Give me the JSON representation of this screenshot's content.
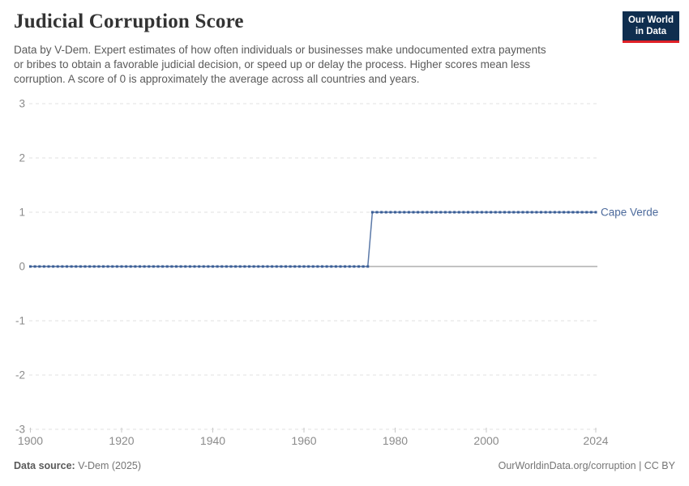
{
  "header": {
    "title": "Judicial Corruption Score",
    "subtitle_lines": [
      "Data by V-Dem. Expert estimates of how often individuals or businesses make undocumented extra payments",
      "or bribes to obtain a favorable judicial decision, or speed up or delay the process. Higher scores mean less",
      "corruption. A score of 0 is approximately the average across all countries and years."
    ],
    "logo": {
      "line1": "Our World",
      "line2": "in Data"
    }
  },
  "chart_data": {
    "type": "line",
    "title": "Judicial Corruption Score",
    "xlim": [
      1900,
      2024
    ],
    "ylim": [
      -3,
      3
    ],
    "x_label_ticks": [
      1900,
      1920,
      1940,
      1960,
      1980,
      2000,
      2024
    ],
    "y_ticks": [
      3,
      2,
      1,
      0,
      -1,
      -2,
      -3
    ],
    "grid": "horizontal-dashed",
    "legend_position": "end-of-line-label",
    "series": [
      {
        "name": "Cape Verde",
        "color": "#4c6a9c",
        "line_color": "#5b79a8",
        "marker_color": "#3a5e96",
        "marker": "square",
        "points_per_year": true,
        "segments": [
          {
            "from_year": 1900,
            "to_year": 1974,
            "value": 0
          },
          {
            "from_year": 1975,
            "to_year": 2024,
            "value": 1
          }
        ]
      }
    ]
  },
  "colors": {
    "gridline": "#e0e0e0",
    "zero_line": "#adadad",
    "tick_label": "#8b8b8b",
    "tick_mark": "#c8c8c8",
    "logo_bg": "#0f2e4f",
    "logo_accent": "#e02127"
  },
  "footer": {
    "source_label": "Data source:",
    "source_value": "V-Dem (2025)",
    "attribution": "OurWorldinData.org/corruption | CC BY"
  }
}
